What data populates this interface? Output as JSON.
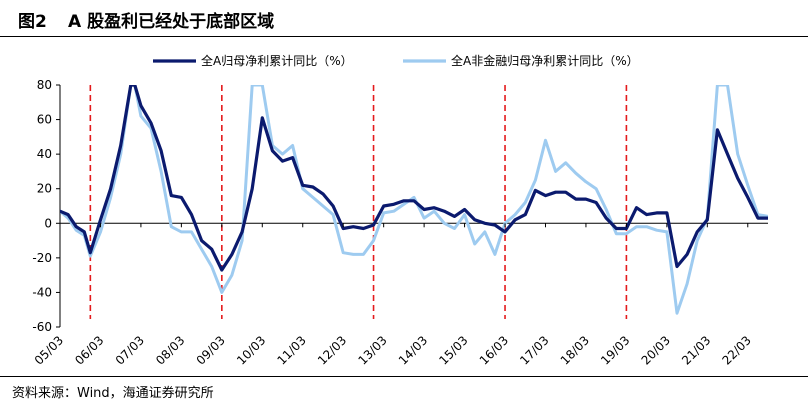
{
  "header": {
    "figure_number": "图2",
    "title": "A 股盈利已经处于底部区域"
  },
  "source": "资料来源：Wind，海通证券研究所",
  "chart_data": {
    "type": "line",
    "title": "A 股盈利已经处于底部区域",
    "xlabel": "",
    "ylabel": "",
    "ylim": [
      -60,
      80
    ],
    "yticks": [
      80,
      60,
      40,
      20,
      0,
      -20,
      -40,
      -60
    ],
    "xlim": [
      2005.0,
      2022.5
    ],
    "xtick_labels": [
      "05/03",
      "06/03",
      "07/03",
      "08/03",
      "09/03",
      "10/03",
      "11/03",
      "12/03",
      "13/03",
      "14/03",
      "15/03",
      "16/03",
      "17/03",
      "18/03",
      "19/03",
      "20/03",
      "21/03",
      "22/03"
    ],
    "xtick_values": [
      2005.0,
      2006.0,
      2007.0,
      2008.0,
      2009.0,
      2010.0,
      2011.0,
      2012.0,
      2013.0,
      2014.0,
      2015.0,
      2016.0,
      2017.0,
      2018.0,
      2019.0,
      2020.0,
      2021.0,
      2022.0
    ],
    "legend_position": "top",
    "grid": false,
    "reference_lines": {
      "style": "red-dashed",
      "x": [
        2005.75,
        2009.0,
        2012.75,
        2016.0,
        2019.0
      ]
    },
    "series": [
      {
        "name": "全A归母净利累计同比（%）",
        "color": "#0b1a6e",
        "points": [
          [
            2005.0,
            7
          ],
          [
            2005.2,
            5
          ],
          [
            2005.4,
            -2
          ],
          [
            2005.6,
            -5
          ],
          [
            2005.75,
            -17
          ],
          [
            2006.0,
            2
          ],
          [
            2006.25,
            20
          ],
          [
            2006.5,
            45
          ],
          [
            2006.75,
            80
          ],
          [
            2006.85,
            80
          ],
          [
            2007.0,
            68
          ],
          [
            2007.25,
            58
          ],
          [
            2007.5,
            42
          ],
          [
            2007.75,
            16
          ],
          [
            2008.0,
            15
          ],
          [
            2008.25,
            5
          ],
          [
            2008.5,
            -10
          ],
          [
            2008.75,
            -15
          ],
          [
            2009.0,
            -27
          ],
          [
            2009.25,
            -18
          ],
          [
            2009.5,
            -5
          ],
          [
            2009.75,
            20
          ],
          [
            2010.0,
            61
          ],
          [
            2010.25,
            42
          ],
          [
            2010.5,
            36
          ],
          [
            2010.75,
            38
          ],
          [
            2011.0,
            22
          ],
          [
            2011.25,
            21
          ],
          [
            2011.5,
            17
          ],
          [
            2011.75,
            10
          ],
          [
            2012.0,
            -3
          ],
          [
            2012.25,
            -2
          ],
          [
            2012.5,
            -3
          ],
          [
            2012.75,
            -1
          ],
          [
            2013.0,
            10
          ],
          [
            2013.25,
            11
          ],
          [
            2013.5,
            13
          ],
          [
            2013.75,
            13
          ],
          [
            2014.0,
            8
          ],
          [
            2014.25,
            9
          ],
          [
            2014.5,
            7
          ],
          [
            2014.75,
            4
          ],
          [
            2015.0,
            8
          ],
          [
            2015.25,
            2
          ],
          [
            2015.5,
            0
          ],
          [
            2015.75,
            -1
          ],
          [
            2016.0,
            -5
          ],
          [
            2016.25,
            2
          ],
          [
            2016.5,
            5
          ],
          [
            2016.75,
            19
          ],
          [
            2017.0,
            16
          ],
          [
            2017.25,
            18
          ],
          [
            2017.5,
            18
          ],
          [
            2017.75,
            14
          ],
          [
            2018.0,
            14
          ],
          [
            2018.25,
            12
          ],
          [
            2018.5,
            3
          ],
          [
            2018.75,
            -3
          ],
          [
            2019.0,
            -3
          ],
          [
            2019.25,
            9
          ],
          [
            2019.5,
            5
          ],
          [
            2019.75,
            6
          ],
          [
            2020.0,
            6
          ],
          [
            2020.25,
            -25
          ],
          [
            2020.5,
            -18
          ],
          [
            2020.75,
            -5
          ],
          [
            2021.0,
            2
          ],
          [
            2021.25,
            54
          ],
          [
            2021.5,
            40
          ],
          [
            2021.75,
            26
          ],
          [
            2022.0,
            15
          ],
          [
            2022.25,
            3
          ],
          [
            2022.5,
            3
          ],
          [
            2022.75,
            2
          ]
        ]
      },
      {
        "name": "全A非金融归母净利累计同比（%）",
        "color": "#9ecbf0",
        "points": [
          [
            2005.0,
            7
          ],
          [
            2005.2,
            3
          ],
          [
            2005.4,
            -4
          ],
          [
            2005.6,
            -7
          ],
          [
            2005.75,
            -19
          ],
          [
            2006.0,
            -5
          ],
          [
            2006.25,
            15
          ],
          [
            2006.5,
            40
          ],
          [
            2006.75,
            80
          ],
          [
            2006.85,
            80
          ],
          [
            2007.0,
            62
          ],
          [
            2007.25,
            55
          ],
          [
            2007.5,
            30
          ],
          [
            2007.75,
            -2
          ],
          [
            2008.0,
            -5
          ],
          [
            2008.25,
            -5
          ],
          [
            2008.5,
            -15
          ],
          [
            2008.75,
            -25
          ],
          [
            2009.0,
            -40
          ],
          [
            2009.25,
            -30
          ],
          [
            2009.5,
            -10
          ],
          [
            2009.75,
            80
          ],
          [
            2010.0,
            80
          ],
          [
            2010.25,
            45
          ],
          [
            2010.5,
            40
          ],
          [
            2010.75,
            45
          ],
          [
            2011.0,
            20
          ],
          [
            2011.25,
            15
          ],
          [
            2011.5,
            10
          ],
          [
            2011.75,
            5
          ],
          [
            2012.0,
            -17
          ],
          [
            2012.25,
            -18
          ],
          [
            2012.5,
            -18
          ],
          [
            2012.75,
            -10
          ],
          [
            2013.0,
            6
          ],
          [
            2013.25,
            7
          ],
          [
            2013.5,
            11
          ],
          [
            2013.75,
            15
          ],
          [
            2014.0,
            3
          ],
          [
            2014.25,
            7
          ],
          [
            2014.5,
            0
          ],
          [
            2014.75,
            -3
          ],
          [
            2015.0,
            5
          ],
          [
            2015.25,
            -12
          ],
          [
            2015.5,
            -5
          ],
          [
            2015.75,
            -18
          ],
          [
            2016.0,
            0
          ],
          [
            2016.25,
            5
          ],
          [
            2016.5,
            12
          ],
          [
            2016.75,
            25
          ],
          [
            2017.0,
            48
          ],
          [
            2017.25,
            30
          ],
          [
            2017.5,
            35
          ],
          [
            2017.75,
            29
          ],
          [
            2018.0,
            24
          ],
          [
            2018.25,
            20
          ],
          [
            2018.5,
            8
          ],
          [
            2018.75,
            -6
          ],
          [
            2019.0,
            -6
          ],
          [
            2019.25,
            -2
          ],
          [
            2019.5,
            -2
          ],
          [
            2019.75,
            -4
          ],
          [
            2020.0,
            -5
          ],
          [
            2020.25,
            -52
          ],
          [
            2020.5,
            -35
          ],
          [
            2020.75,
            -10
          ],
          [
            2021.0,
            3
          ],
          [
            2021.25,
            80
          ],
          [
            2021.5,
            80
          ],
          [
            2021.75,
            40
          ],
          [
            2022.0,
            22
          ],
          [
            2022.25,
            5
          ],
          [
            2022.5,
            4
          ],
          [
            2022.75,
            2
          ]
        ]
      }
    ]
  }
}
